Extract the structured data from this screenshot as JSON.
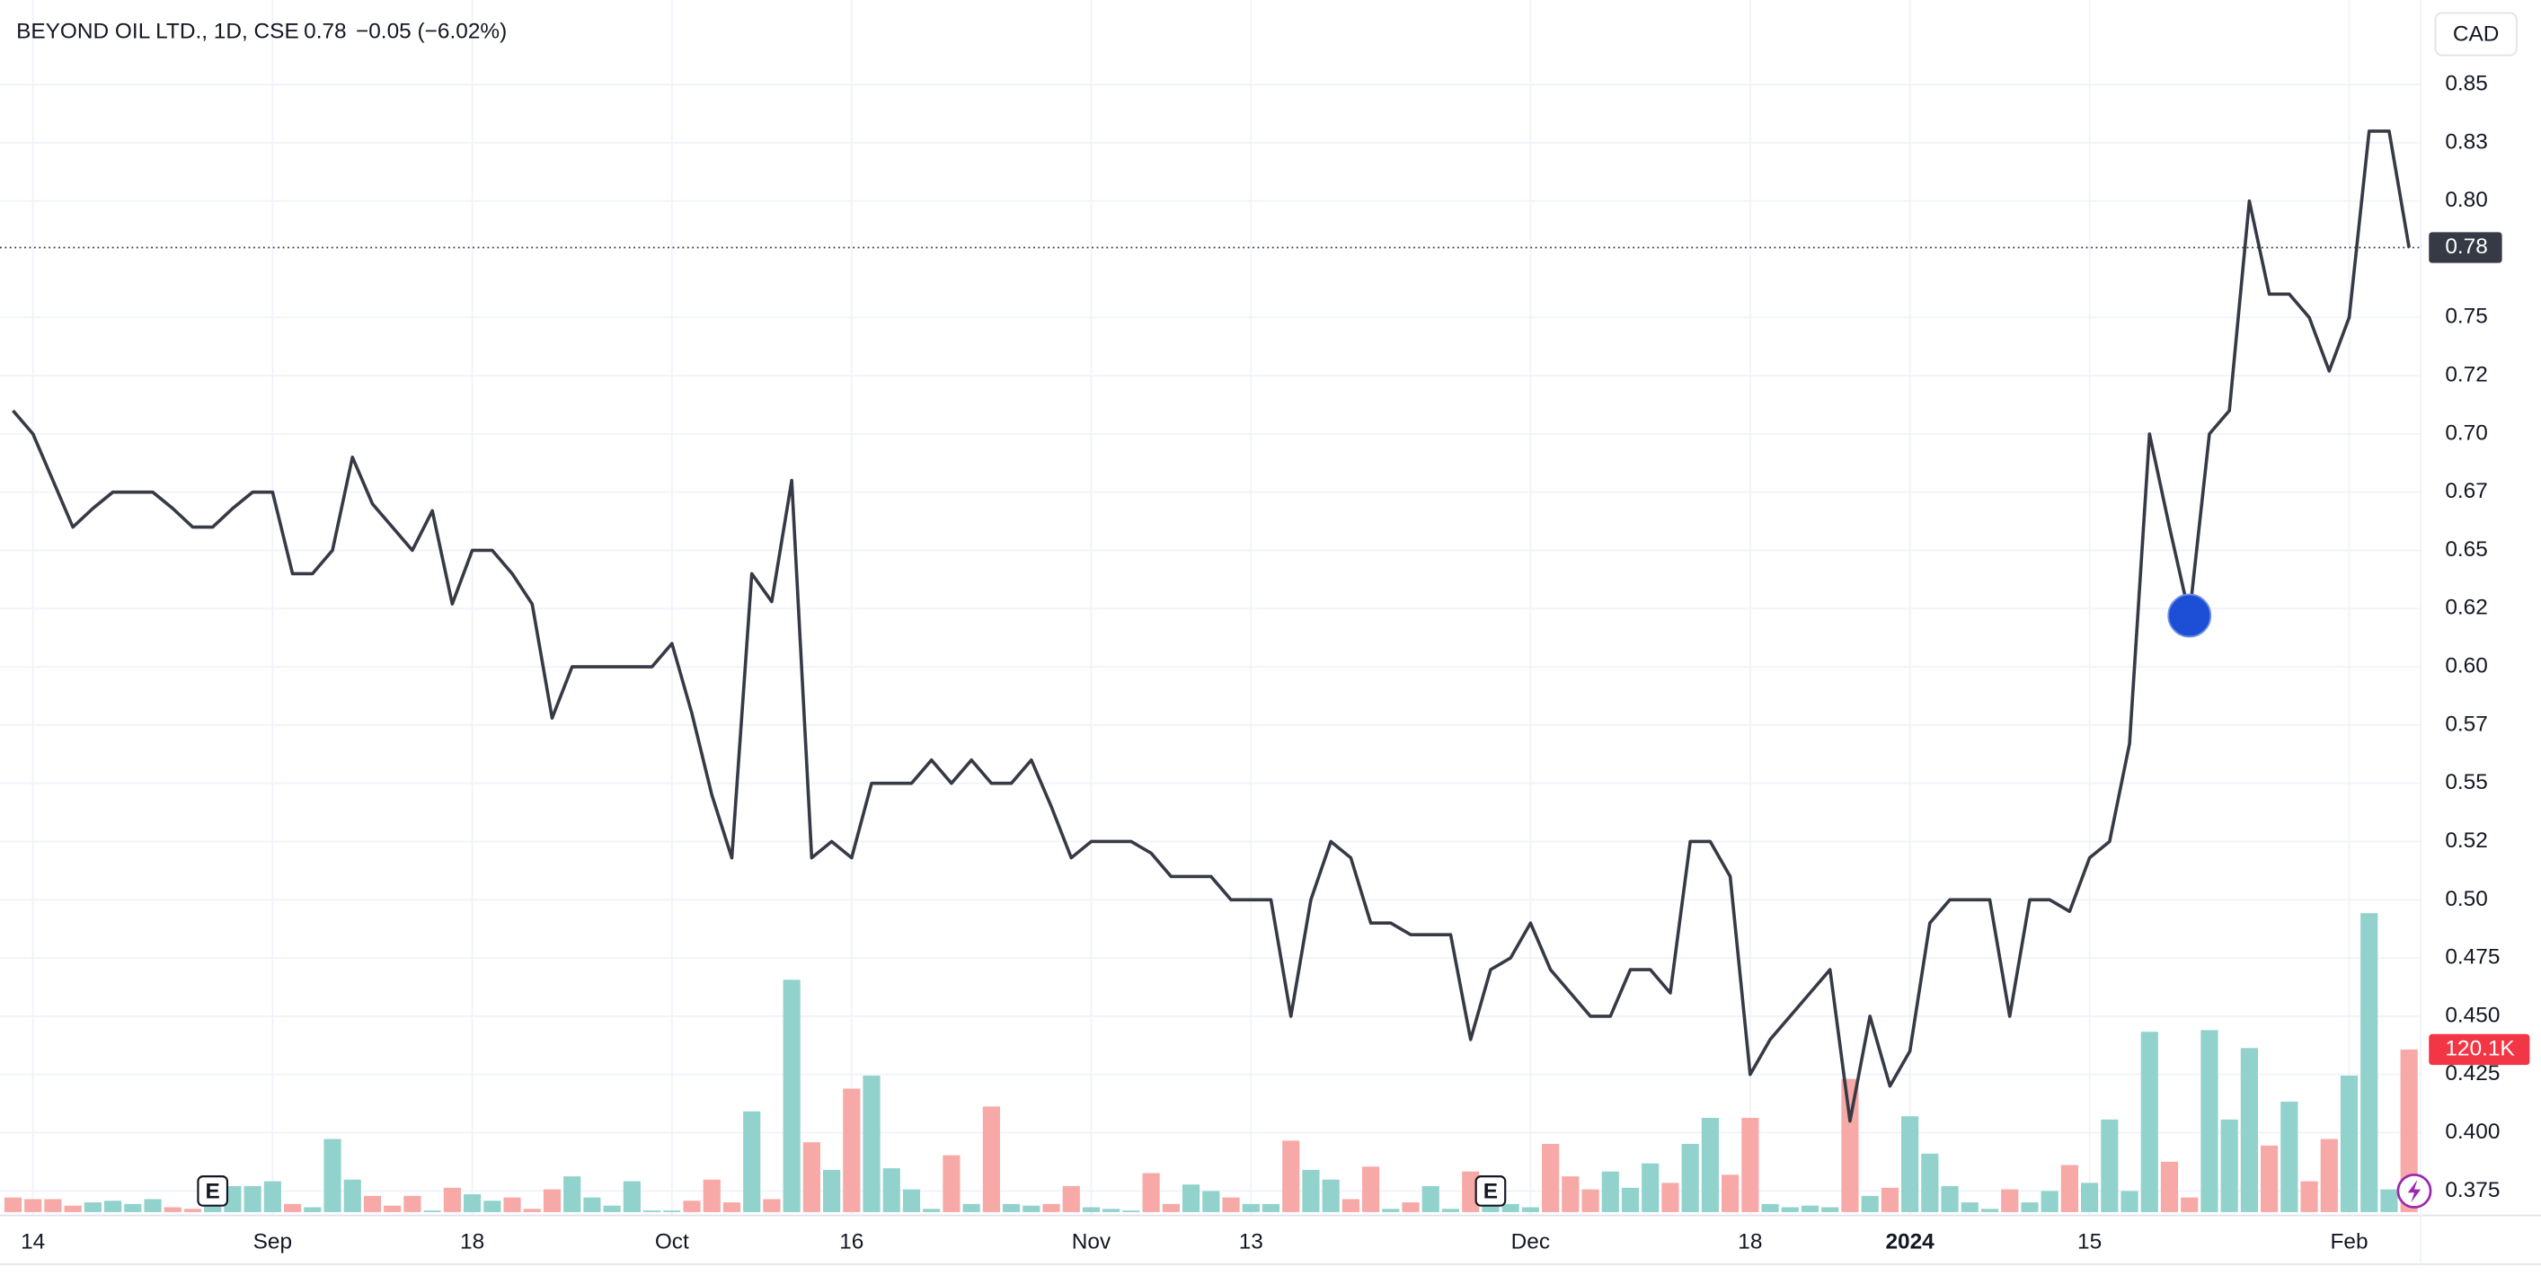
{
  "chart_data": {
    "type": "line",
    "title": "BEYOND OIL LTD., 1D, CSE",
    "last_price": "0.78",
    "change": "−0.05 (−6.02%)",
    "currency": "CAD",
    "categories": [
      null,
      "14",
      null,
      null,
      null,
      null,
      null,
      null,
      null,
      null,
      null,
      null,
      null,
      "Sep",
      null,
      null,
      null,
      null,
      null,
      null,
      null,
      null,
      null,
      "18",
      null,
      null,
      null,
      null,
      null,
      null,
      null,
      null,
      null,
      "Oct",
      null,
      null,
      null,
      null,
      null,
      null,
      null,
      null,
      "16",
      null,
      null,
      null,
      null,
      null,
      null,
      null,
      null,
      null,
      null,
      null,
      "Nov",
      null,
      null,
      null,
      null,
      null,
      null,
      null,
      "13",
      null,
      null,
      null,
      null,
      null,
      null,
      null,
      null,
      null,
      null,
      null,
      null,
      null,
      "Dec",
      null,
      null,
      null,
      null,
      null,
      null,
      null,
      null,
      null,
      null,
      "18",
      null,
      null,
      null,
      null,
      null,
      null,
      null,
      "2024",
      null,
      null,
      null,
      null,
      null,
      null,
      null,
      null,
      "15",
      null,
      null,
      null,
      null,
      null,
      null,
      null,
      null,
      null,
      null,
      null,
      null,
      "Feb",
      null,
      null,
      null
    ],
    "series": [
      {
        "color": "#363a45",
        "values": [
          0.71,
          0.7,
          0.68,
          0.66,
          0.668,
          0.675,
          0.675,
          0.675,
          0.668,
          0.66,
          0.66,
          0.668,
          0.675,
          0.675,
          0.64,
          0.64,
          0.65,
          0.69,
          0.67,
          0.66,
          0.65,
          0.667,
          0.627,
          0.65,
          0.65,
          0.64,
          0.627,
          0.578,
          0.6,
          0.6,
          0.6,
          0.6,
          0.6,
          0.61,
          0.58,
          0.545,
          0.518,
          0.64,
          0.628,
          0.68,
          0.518,
          0.525,
          0.518,
          0.55,
          0.55,
          0.55,
          0.56,
          0.55,
          0.56,
          0.55,
          0.55,
          0.56,
          0.54,
          0.518,
          0.525,
          0.525,
          0.525,
          0.52,
          0.51,
          0.51,
          0.51,
          0.5,
          0.5,
          0.5,
          0.45,
          0.5,
          0.525,
          0.518,
          0.49,
          0.49,
          0.485,
          0.485,
          0.485,
          0.44,
          0.47,
          0.475,
          0.49,
          0.47,
          0.46,
          0.45,
          0.45,
          0.47,
          0.47,
          0.46,
          0.525,
          0.525,
          0.51,
          0.425,
          0.44,
          0.45,
          0.46,
          0.47,
          0.405,
          0.45,
          0.42,
          0.435,
          0.49,
          0.5,
          0.5,
          0.5,
          0.45,
          0.5,
          0.5,
          0.495,
          0.518,
          0.525,
          0.567,
          0.7,
          0.66,
          0.622,
          0.7,
          0.71,
          0.8,
          0.76,
          0.76,
          0.75,
          0.727,
          0.75,
          0.83,
          0.83,
          0.78
        ]
      }
    ],
    "volume": {
      "up_color": "#92d2cc",
      "down_color": "#f7a9a7",
      "label_color": "#f23645",
      "values": [
        10800,
        9600,
        9600,
        4800,
        7200,
        8400,
        6000,
        9600,
        3600,
        2400,
        12000,
        19200,
        19200,
        22800,
        6000,
        3600,
        54000,
        24000,
        12000,
        4800,
        12000,
        1200,
        18000,
        13200,
        8400,
        10800,
        2400,
        16800,
        26400,
        10800,
        4800,
        22800,
        1200,
        1200,
        8400,
        24000,
        7200,
        74400,
        9600,
        171600,
        51600,
        31200,
        91200,
        100800,
        32400,
        16800,
        2400,
        42000,
        6000,
        78000,
        6000,
        4800,
        6000,
        19200,
        3600,
        2400,
        1200,
        28800,
        6000,
        20400,
        15600,
        10800,
        6000,
        6000,
        52800,
        31200,
        24000,
        9600,
        33600,
        2400,
        7200,
        19200,
        2400,
        30000,
        6000,
        6000,
        3600,
        50400,
        26400,
        16800,
        30000,
        18000,
        36000,
        21600,
        50400,
        69600,
        27600,
        69600,
        6000,
        3600,
        4800,
        3600,
        98400,
        12000,
        18000,
        70800,
        43200,
        19200,
        7200,
        2400,
        16800,
        7200,
        15600,
        34800,
        21600,
        68400,
        15600,
        133200,
        37200,
        10800,
        134400,
        68400,
        121200,
        49200,
        81600,
        22800,
        54000,
        100800,
        220800,
        16800,
        120100
      ],
      "value_labels": [
        null,
        null,
        null,
        null,
        null,
        null,
        null,
        null,
        null,
        null,
        null,
        null,
        null,
        null,
        null,
        null,
        null,
        null,
        null,
        null,
        null,
        null,
        null,
        null,
        null,
        null,
        null,
        null,
        null,
        null,
        null,
        null,
        null,
        null,
        null,
        null,
        null,
        null,
        null,
        null,
        null,
        null,
        null,
        null,
        null,
        null,
        null,
        null,
        null,
        null,
        null,
        null,
        null,
        null,
        null,
        null,
        null,
        null,
        null,
        null,
        null,
        null,
        null,
        null,
        null,
        null,
        null,
        null,
        null,
        null,
        null,
        null,
        null,
        null,
        null,
        null,
        null,
        null,
        null,
        null,
        null,
        null,
        null,
        null,
        null,
        null,
        null,
        null,
        null,
        null,
        null,
        null,
        null,
        null,
        null,
        null,
        null,
        null,
        null,
        null,
        null,
        null,
        null,
        null,
        null,
        null,
        null,
        null,
        null,
        null,
        null,
        null,
        null,
        null,
        null,
        null,
        null,
        null,
        null,
        null,
        "120.1K"
      ]
    },
    "marker": {
      "index": 109,
      "color": "#1c4fd6"
    },
    "events": [
      {
        "label": "E",
        "index": 10
      },
      {
        "label": "E",
        "index": 74
      }
    ],
    "ylim": [
      0.3645,
      0.8807
    ],
    "yticks": [
      0.85,
      {
        "value": 0.825,
        "label": "0.83"
      },
      {
        "value": 0.8,
        "label": "0.80"
      },
      0.75,
      {
        "value": 0.725,
        "label": "0.72"
      },
      {
        "value": 0.7,
        "label": "0.70"
      },
      {
        "value": 0.675,
        "label": "0.67"
      },
      0.65,
      {
        "value": 0.625,
        "label": "0.62"
      },
      {
        "value": 0.6,
        "label": "0.60"
      },
      {
        "value": 0.575,
        "label": "0.57"
      },
      0.55,
      {
        "value": 0.525,
        "label": "0.52"
      },
      {
        "value": 0.5,
        "label": "0.50"
      },
      0.475,
      {
        "value": 0.45,
        "label": "0.450"
      },
      0.425,
      {
        "value": 0.4,
        "label": "0.400"
      },
      0.375
    ],
    "grid": true
  }
}
